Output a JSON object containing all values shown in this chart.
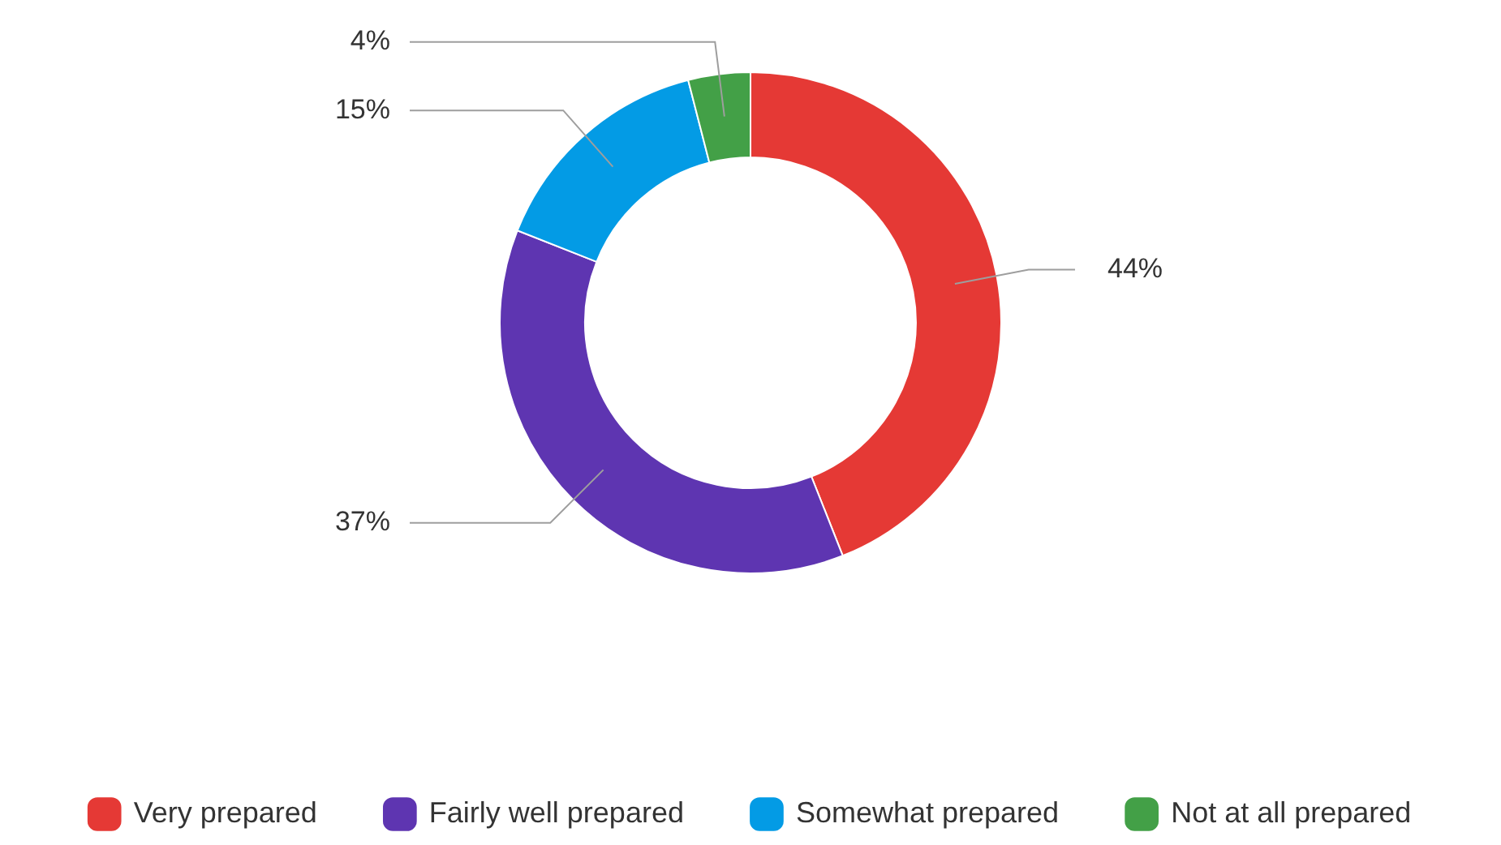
{
  "chart_data": {
    "type": "donut",
    "categories": [
      "Very prepared",
      "Fairly well prepared",
      "Somewhat prepared",
      "Not at all prepared"
    ],
    "values": [
      44,
      37,
      15,
      4
    ],
    "colors": [
      "#e53935",
      "#5e35b1",
      "#039be5",
      "#43a047"
    ],
    "value_labels": [
      "44%",
      "37%",
      "15%",
      "4%"
    ],
    "legend": "bottom"
  }
}
